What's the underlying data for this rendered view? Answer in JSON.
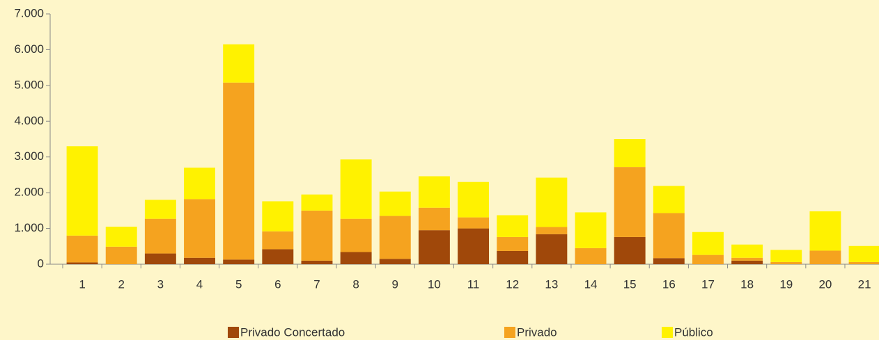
{
  "chart_data": {
    "type": "stacked_bar",
    "categories": [
      "1",
      "2",
      "3",
      "4",
      "5",
      "6",
      "7",
      "8",
      "9",
      "10",
      "11",
      "12",
      "13",
      "14",
      "15",
      "16",
      "17",
      "18",
      "19",
      "20",
      "21"
    ],
    "series": [
      {
        "name": "Privado Concertado",
        "color": "#a0480a",
        "values": [
          50,
          0,
          300,
          180,
          130,
          420,
          100,
          340,
          150,
          950,
          1000,
          370,
          840,
          0,
          760,
          170,
          0,
          100,
          0,
          0,
          0
        ]
      },
      {
        "name": "Privado",
        "color": "#f5a31f",
        "values": [
          750,
          490,
          970,
          1640,
          4950,
          500,
          1400,
          930,
          1200,
          630,
          310,
          390,
          200,
          450,
          1960,
          1260,
          260,
          80,
          60,
          380,
          60
        ]
      },
      {
        "name": "Público",
        "color": "#fff200",
        "values": [
          2500,
          560,
          530,
          880,
          1070,
          840,
          450,
          1660,
          680,
          880,
          990,
          610,
          1380,
          1000,
          780,
          760,
          640,
          370,
          340,
          1100,
          450
        ]
      }
    ],
    "ylim": [
      0,
      7000
    ],
    "yticks": [
      0,
      {
        "value": 1000,
        "label": "1.000"
      },
      {
        "value": 2000,
        "label": "2.000"
      },
      {
        "value": 3000,
        "label": "3.000"
      },
      {
        "value": 4000,
        "label": "4.000"
      },
      {
        "value": 5000,
        "label": "5.000"
      },
      {
        "value": 6000,
        "label": "6.000"
      },
      {
        "value": 7000,
        "label": "7.000"
      }
    ],
    "grid": false,
    "legend": "bottom"
  }
}
